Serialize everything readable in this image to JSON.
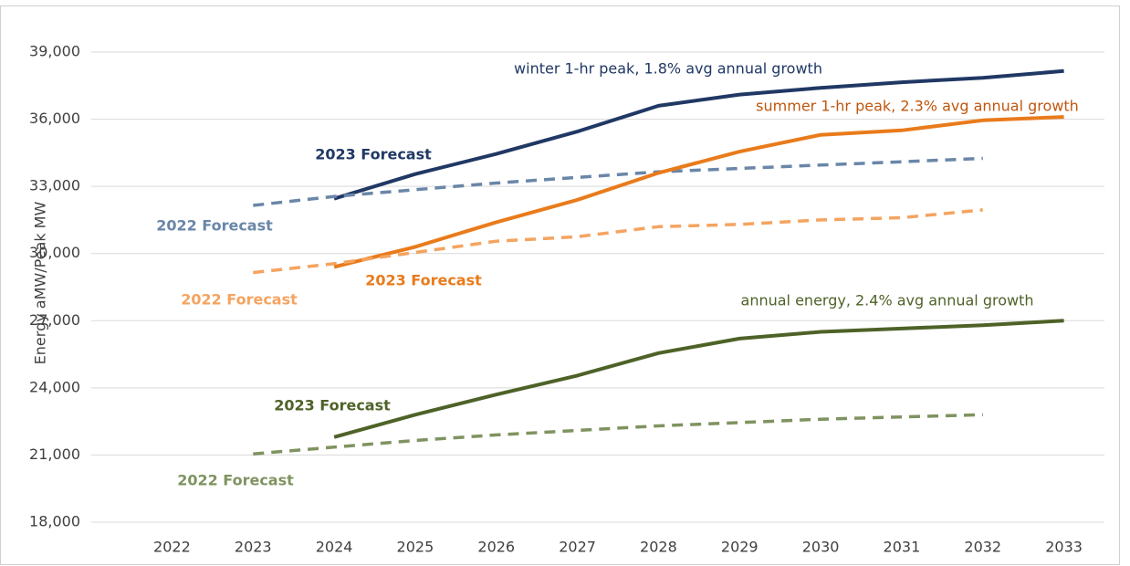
{
  "chart_data": {
    "type": "line",
    "y_label": "Energy aMW/Peak MW",
    "categories": [
      "2022",
      "2023",
      "2024",
      "2025",
      "2026",
      "2027",
      "2028",
      "2029",
      "2030",
      "2031",
      "2032",
      "2033"
    ],
    "ylim": [
      18000,
      39000
    ],
    "yticks": [
      {
        "value": 18000,
        "label": "18,000"
      },
      {
        "value": 21000,
        "label": "21,000"
      },
      {
        "value": 24000,
        "label": "24,000"
      },
      {
        "value": 27000,
        "label": "27,000"
      },
      {
        "value": 30000,
        "label": "30,000"
      },
      {
        "value": 33000,
        "label": "33,000"
      },
      {
        "value": 36000,
        "label": "36,000"
      },
      {
        "value": 39000,
        "label": "39,000"
      }
    ],
    "grid": true,
    "series": [
      {
        "name": "2023 Forecast",
        "color": "#203864",
        "dashed": false,
        "values": [
          null,
          null,
          32450,
          33550,
          34450,
          35450,
          36600,
          37100,
          37400,
          37650,
          37850,
          38150
        ]
      },
      {
        "name": "2022 Forecast",
        "color": "#6a86a8",
        "dashed": true,
        "values": [
          null,
          32150,
          32550,
          32850,
          33150,
          33400,
          33650,
          33800,
          33950,
          34100,
          34250,
          null
        ]
      },
      {
        "name": "2023 Forecast",
        "color": "#e97b1b",
        "dashed": false,
        "values": [
          null,
          null,
          29400,
          30300,
          31400,
          32400,
          33600,
          34550,
          35300,
          35500,
          35950,
          36100
        ]
      },
      {
        "name": "2022 Forecast",
        "color": "#f4a460",
        "dashed": true,
        "values": [
          null,
          29150,
          29550,
          30050,
          30550,
          30750,
          31200,
          31300,
          31500,
          31600,
          31950,
          null
        ]
      },
      {
        "name": "2023 Forecast",
        "color": "#4e6228",
        "dashed": false,
        "values": [
          null,
          null,
          21800,
          22800,
          23700,
          24550,
          25550,
          26200,
          26500,
          26650,
          26800,
          27000
        ]
      },
      {
        "name": "2022 Forecast",
        "color": "#7f9360",
        "dashed": true,
        "values": [
          null,
          21050,
          21350,
          21650,
          21900,
          22100,
          22300,
          22450,
          22600,
          22700,
          22800,
          null
        ]
      }
    ],
    "annotations": [
      {
        "text": "winter 1-hr peak, 1.8% avg annual growth",
        "color": "#203864"
      },
      {
        "text": "summer 1-hr peak, 2.3% avg annual growth",
        "color": "#c0560e"
      },
      {
        "text": "annual energy, 2.4% avg annual growth",
        "color": "#4e6228"
      }
    ]
  }
}
